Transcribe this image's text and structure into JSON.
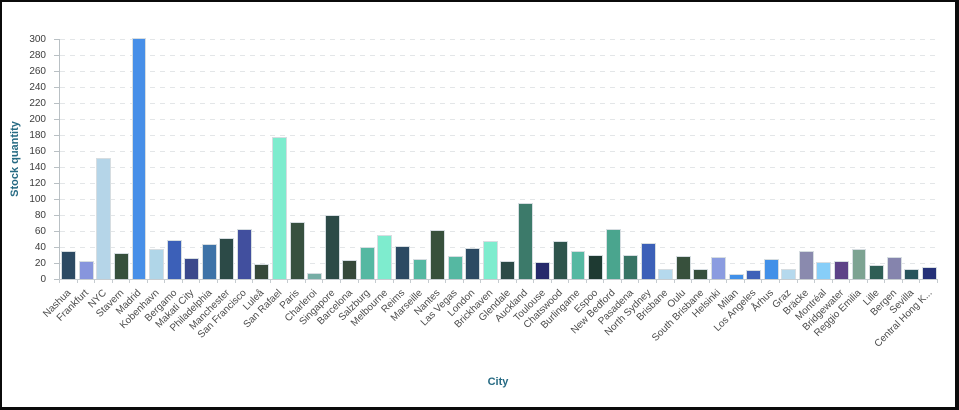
{
  "chart_data": {
    "type": "bar",
    "title": "",
    "xlabel": "City",
    "ylabel": "Stock quantity",
    "ylim": [
      0,
      300
    ],
    "ytick_interval": 20,
    "yticks": [
      0,
      20,
      40,
      60,
      80,
      100,
      120,
      140,
      160,
      180,
      200,
      220,
      240,
      260,
      280,
      300
    ],
    "grid": "horizontal-dashed",
    "legend_position": "none",
    "categories": [
      "Nashua",
      "Frankfurt",
      "NYC",
      "Stavern",
      "Madrid",
      "Kobenhavn",
      "Bergamo",
      "Makati City",
      "Philadelphia",
      "Manchester",
      "San Francisco",
      "Luleå",
      "San Rafael",
      "Paris",
      "Charleroi",
      "Singapore",
      "Barcelona",
      "Salzburg",
      "Melbourne",
      "Reims",
      "Marseille",
      "Nantes",
      "Las Vegas",
      "London",
      "Brickhaven",
      "Glendale",
      "Auckland",
      "Toulouse",
      "Chatswood",
      "Burlingame",
      "Espoo",
      "New Bedford",
      "Pasadena",
      "North Sydney",
      "Brisbane",
      "Oulu",
      "South Brisbane",
      "Helsinki",
      "Milan",
      "Los Angeles",
      "Århus",
      "Graz",
      "Bräcke",
      "Montréal",
      "Bridgewater",
      "Reggio Emilia",
      "Lille",
      "Bergen",
      "Sevilla",
      "Central Hong K..."
    ],
    "values": [
      35,
      23,
      151,
      33,
      301,
      37,
      49,
      26,
      44,
      51,
      63,
      19,
      178,
      71,
      8,
      80,
      24,
      40,
      55,
      41,
      25,
      61,
      29,
      39,
      48,
      23,
      95,
      21,
      47,
      35,
      30,
      62,
      30,
      45,
      13,
      29,
      13,
      28,
      6,
      11,
      25,
      13,
      35,
      21,
      23,
      37,
      18,
      27,
      13,
      15
    ],
    "colors": [
      "#2c4a63",
      "#8795dd",
      "#b5d5e8",
      "#37503c",
      "#478fe8",
      "#b0d6e8",
      "#3c60b8",
      "#3c4a8c",
      "#3e73a8",
      "#2c4a47",
      "#414f9e",
      "#36493a",
      "#7eecce",
      "#37503f",
      "#76ada5",
      "#2c4a47",
      "#36493a",
      "#55b8a2",
      "#7eecce",
      "#2c4a63",
      "#55b8a2",
      "#37503c",
      "#55b8a2",
      "#2c4a63",
      "#7eecce",
      "#2c4a47",
      "#3c7a6a",
      "#252a6b",
      "#2e544c",
      "#55b8a2",
      "#1e3a32",
      "#4aa58e",
      "#387465",
      "#3c60b8",
      "#b5d9ed",
      "#37503c",
      "#37503c",
      "#8b9ce0",
      "#4190e8",
      "#3e62b8",
      "#4190e8",
      "#b5d9ed",
      "#8a8aae",
      "#87cef8",
      "#5d4387",
      "#7da392",
      "#2e5e55",
      "#8584ad",
      "#27545c",
      "#253178"
    ]
  },
  "styles": {
    "axis_title_color": "#266a83",
    "tick_label_color": "#4a4a4a",
    "gridline_color": "#e3e6e8",
    "axis_line_color": "#b9c0c4",
    "frame_border_color": "#0b0b0b",
    "background_color": "#ffffff"
  }
}
